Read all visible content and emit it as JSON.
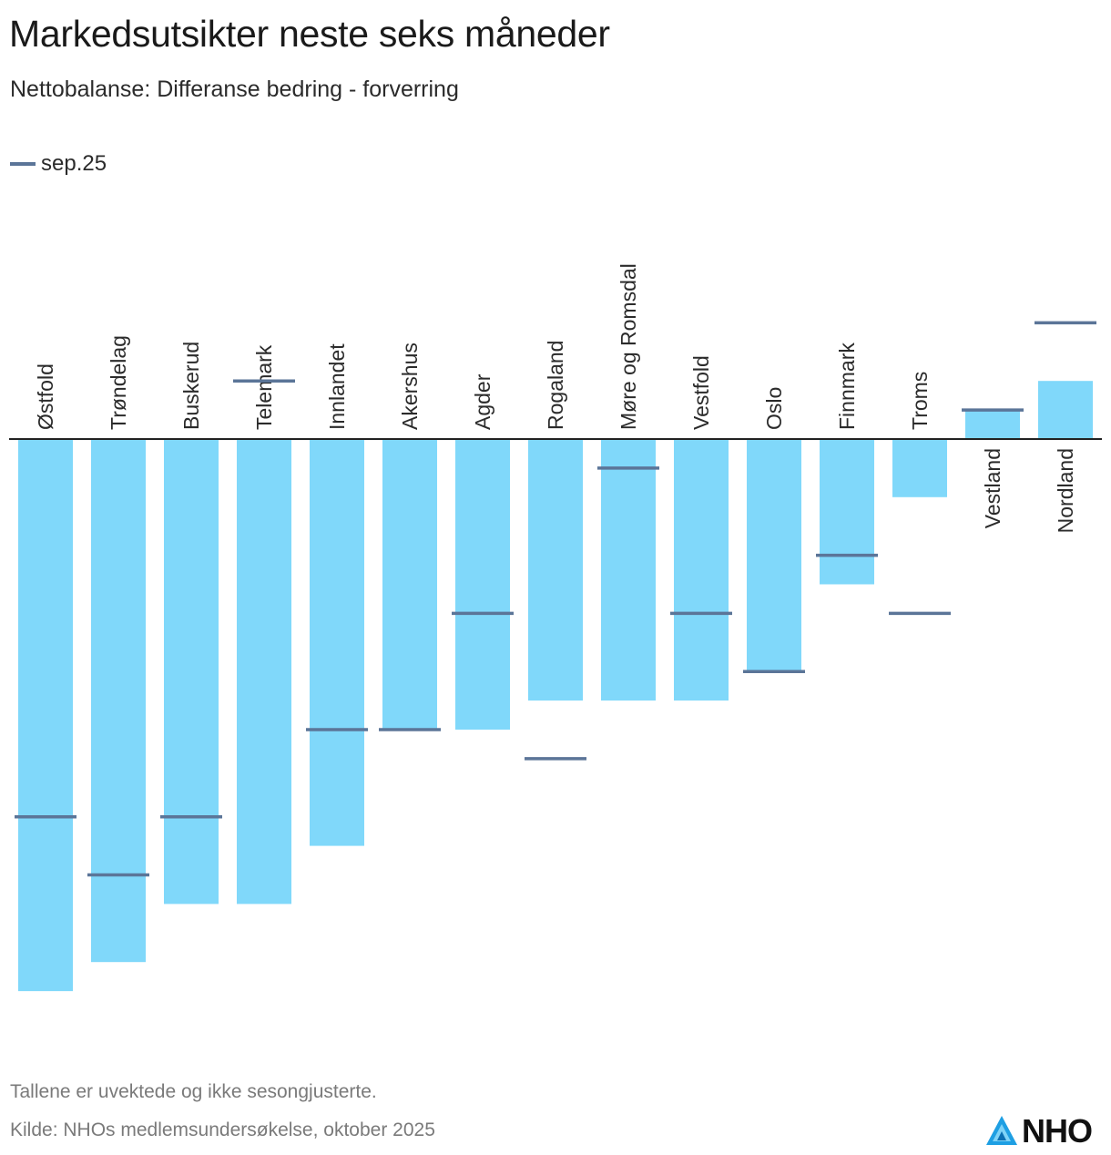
{
  "title": "Markedsutsikter neste seks måneder",
  "subtitle": "Nettobalanse: Differanse bedring - forverring",
  "legend": {
    "marker_label": "sep.25"
  },
  "colors": {
    "bar": "#80d8fa",
    "marker": "#5b7598",
    "axis": "#222222",
    "text": "#2b2b2b"
  },
  "chart_data": {
    "type": "bar",
    "title": "Markedsutsikter neste seks måneder",
    "subtitle": "Nettobalanse: Differanse bedring - forverring",
    "xlabel": "",
    "ylabel": "",
    "ylim": [
      -50,
      10
    ],
    "grid": false,
    "categories": [
      "Østfold",
      "Trøndelag",
      "Buskerud",
      "Telemark",
      "Innlandet",
      "Akershus",
      "Agder",
      "Rogaland",
      "Møre og Romsdal",
      "Vestfold",
      "Oslo",
      "Finnmark",
      "Troms",
      "Vestland",
      "Nordland"
    ],
    "series": [
      {
        "name": "Nettobalanse",
        "style": "bar",
        "values": [
          -38,
          -36,
          -32,
          -32,
          -28,
          -20,
          -20,
          -18,
          -18,
          -18,
          -16,
          -10,
          -4,
          2,
          4
        ]
      },
      {
        "name": "sep.25",
        "style": "marker",
        "values": [
          -26,
          -30,
          -26,
          4,
          -20,
          -20,
          -12,
          -22,
          -2,
          -12,
          -16,
          -8,
          -12,
          2,
          8
        ]
      }
    ]
  },
  "footer": {
    "note": "Tallene er uvektede og ikke sesongjusterte.",
    "source": "Kilde: NHOs medlemsundersøkelse, oktober 2025"
  },
  "logo": {
    "text": "NHO",
    "icon": "nho-logo-icon"
  }
}
